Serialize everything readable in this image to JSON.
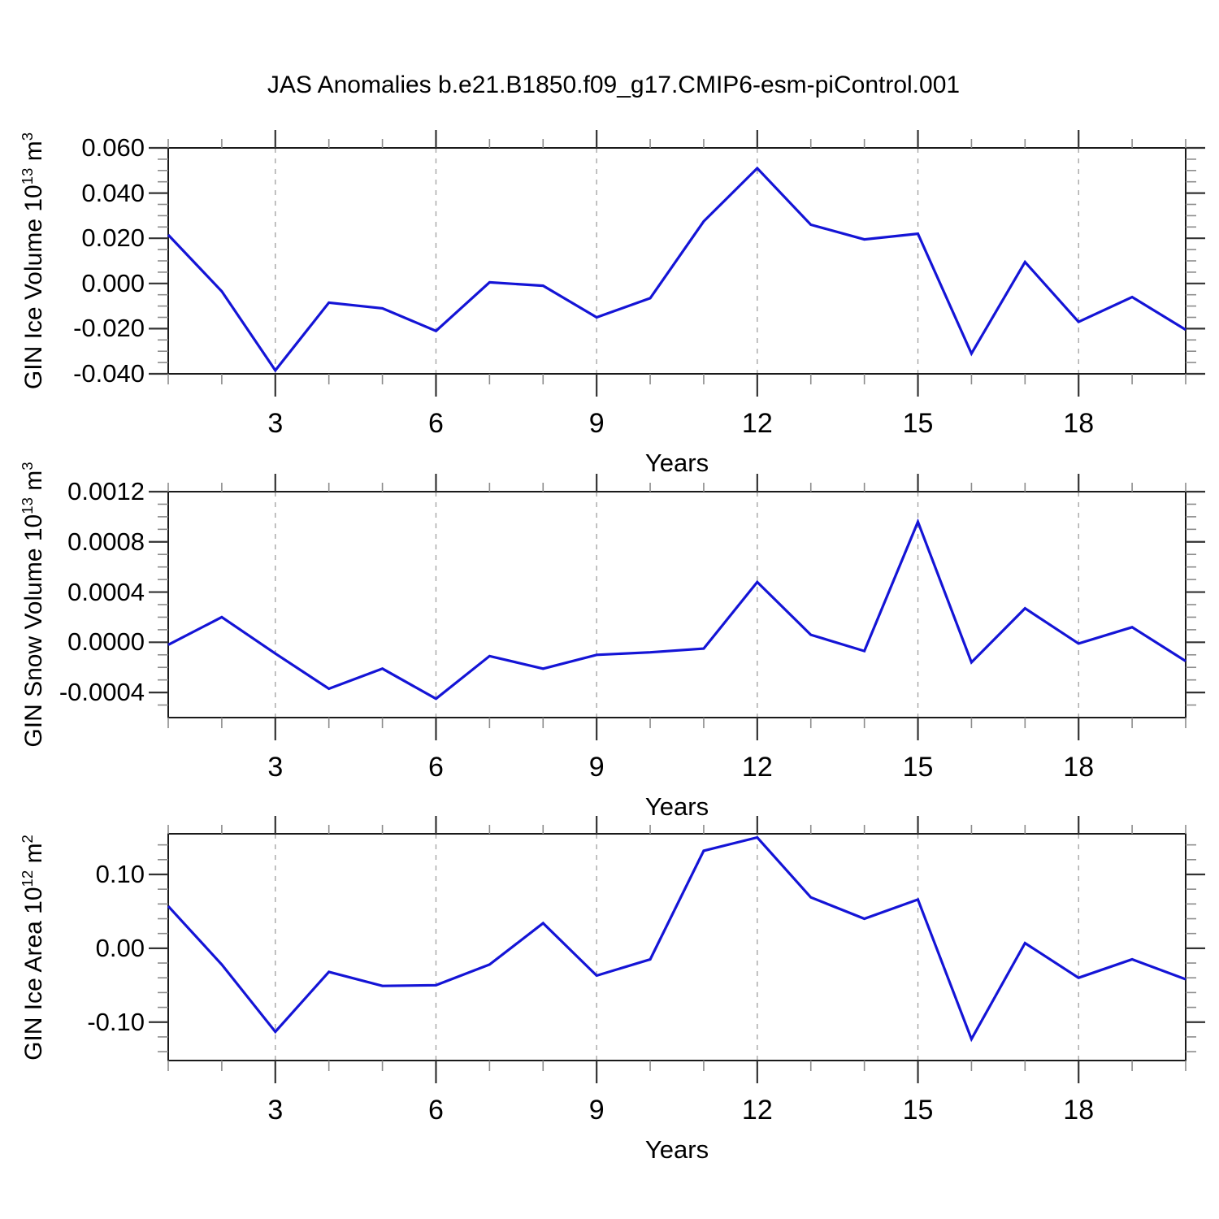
{
  "title": "JAS Anomalies b.e21.B1850.f09_g17.CMIP6-esm-piControl.001",
  "x_axis_label": "Years",
  "colors": {
    "line": "#1414d6",
    "grid": "#a0a0a0",
    "frame": "#1a1a1a",
    "tick_major": "#333333",
    "tick_minor": "#8c8c8c",
    "text": "#000000"
  },
  "x_years": [
    1,
    2,
    3,
    4,
    5,
    6,
    7,
    8,
    9,
    10,
    11,
    12,
    13,
    14,
    15,
    16,
    17,
    18,
    19,
    20
  ],
  "x_major_ticks": {
    "labels": [
      "3",
      "6",
      "9",
      "12",
      "15",
      "18"
    ],
    "values": [
      3,
      6,
      9,
      12,
      15,
      18
    ]
  },
  "chart_data": [
    {
      "type": "line",
      "name": "gin-ice-volume",
      "ylabel_parts": [
        {
          "text": "GIN Ice Volume 10"
        },
        {
          "text": "13",
          "super": true
        },
        {
          "text": " m"
        },
        {
          "text": "3",
          "super": true
        }
      ],
      "ylabel_plain": "GIN Ice Volume 10^13 m^3",
      "xlabel": "Years",
      "ylim": [
        -0.04,
        0.06
      ],
      "y_major_ticks": {
        "labels": [
          "0.060",
          "0.040",
          "0.020",
          "0.000",
          "-0.020",
          "-0.040"
        ],
        "values": [
          0.06,
          0.04,
          0.02,
          0.0,
          -0.02,
          -0.04
        ]
      },
      "y_minor_step": 0.005,
      "values": [
        0.0215,
        -0.0035,
        -0.0385,
        -0.0085,
        -0.011,
        -0.021,
        0.0005,
        -0.001,
        -0.015,
        -0.0065,
        0.0275,
        0.051,
        0.026,
        0.0195,
        0.022,
        -0.031,
        0.0095,
        -0.017,
        -0.006,
        -0.0205
      ]
    },
    {
      "type": "line",
      "name": "gin-snow-volume",
      "ylabel_parts": [
        {
          "text": "GIN Snow Volume 10"
        },
        {
          "text": "13",
          "super": true
        },
        {
          "text": " m"
        },
        {
          "text": "3",
          "super": true
        }
      ],
      "ylabel_plain": "GIN Snow Volume 10^13 m^3",
      "xlabel": "Years",
      "ylim": [
        -0.0006,
        0.0012
      ],
      "y_major_ticks": {
        "labels": [
          "0.0012",
          "0.0008",
          "0.0004",
          "0.0000",
          "-0.0004"
        ],
        "values": [
          0.0012,
          0.0008,
          0.0004,
          0.0,
          -0.0004
        ]
      },
      "y_minor_step": 0.0001,
      "values": [
        -2e-05,
        0.0002,
        -9e-05,
        -0.00037,
        -0.00021,
        -0.00045,
        -0.00011,
        -0.00021,
        -0.0001,
        -8e-05,
        -5e-05,
        0.00048,
        6e-05,
        -7e-05,
        0.00096,
        -0.00016,
        0.00027,
        -1e-05,
        0.00012,
        -0.00015
      ]
    },
    {
      "type": "line",
      "name": "gin-ice-area",
      "ylabel_parts": [
        {
          "text": "GIN Ice Area 10"
        },
        {
          "text": "12",
          "super": true
        },
        {
          "text": " m"
        },
        {
          "text": "2",
          "super": true
        }
      ],
      "ylabel_plain": "GIN Ice Area 10^12 m^2",
      "xlabel": "Years",
      "ylim": [
        -0.152,
        0.155
      ],
      "y_major_ticks": {
        "labels": [
          "0.10",
          "0.00",
          "-0.10"
        ],
        "values": [
          0.1,
          0.0,
          -0.1
        ]
      },
      "y_minor_step": 0.02,
      "values": [
        0.057,
        -0.022,
        -0.113,
        -0.032,
        -0.051,
        -0.05,
        -0.022,
        0.034,
        -0.037,
        -0.015,
        0.132,
        0.15,
        0.069,
        0.04,
        0.066,
        -0.123,
        0.007,
        -0.04,
        -0.015,
        -0.042
      ]
    }
  ]
}
